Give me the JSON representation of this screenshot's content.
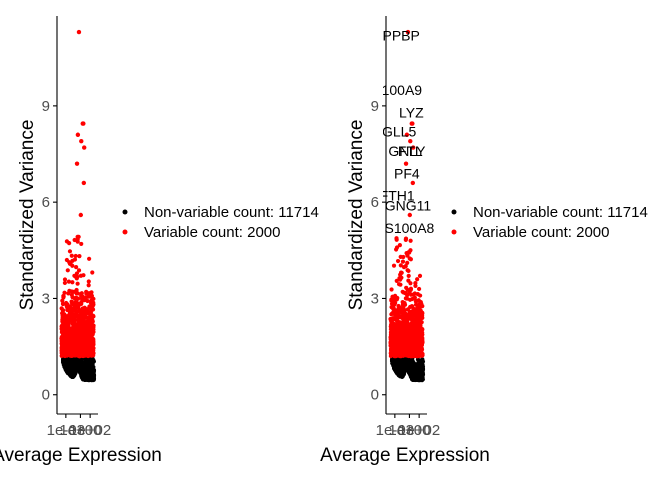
{
  "chart_data": [
    {
      "type": "scatter",
      "xlabel": "Average Expression",
      "ylabel": "Standardized Variance",
      "x_tick_labels": [
        "1e-03",
        "1e+00",
        "1e+02"
      ],
      "x_scale": "log",
      "y_ticks": [
        0,
        3,
        6,
        9
      ],
      "ylim": [
        -0.6,
        11.8
      ],
      "grid": false,
      "legend_position": "right",
      "series": [
        {
          "name": "Non-variable count: 11714",
          "color": "#000000",
          "count": 11714
        },
        {
          "name": "Variable count: 2000",
          "color": "#ff0000",
          "count": 2000
        }
      ],
      "highlighted_points": [
        {
          "x": 0.5,
          "y": 11.3
        },
        {
          "x": 3,
          "y": 8.45
        },
        {
          "x": 4,
          "y": 8.45
        },
        {
          "x": 0.3,
          "y": 8.1
        },
        {
          "x": 1.5,
          "y": 7.9
        },
        {
          "x": 6,
          "y": 7.7
        },
        {
          "x": 0.2,
          "y": 7.2
        },
        {
          "x": 5,
          "y": 6.6
        },
        {
          "x": 1.2,
          "y": 5.6
        }
      ],
      "gene_labels": []
    },
    {
      "type": "scatter",
      "xlabel": "Average Expression",
      "ylabel": "Standardized Variance",
      "x_tick_labels": [
        "1e-03",
        "1e+00",
        "1e+02"
      ],
      "x_scale": "log",
      "y_ticks": [
        0,
        3,
        6,
        9
      ],
      "ylim": [
        -0.6,
        11.8
      ],
      "grid": false,
      "legend_position": "right",
      "series": [
        {
          "name": "Non-variable count: 11714",
          "color": "#000000",
          "count": 11714
        },
        {
          "name": "Variable count: 2000",
          "color": "#ff0000",
          "count": 2000
        }
      ],
      "highlighted_points": [
        {
          "x": 0.5,
          "y": 11.3
        },
        {
          "x": 3,
          "y": 8.45
        },
        {
          "x": 4,
          "y": 8.45
        },
        {
          "x": 0.3,
          "y": 8.1
        },
        {
          "x": 1.5,
          "y": 7.9
        },
        {
          "x": 6,
          "y": 7.7
        },
        {
          "x": 0.2,
          "y": 7.2
        },
        {
          "x": 5,
          "y": 6.6
        },
        {
          "x": 1.2,
          "y": 5.6
        }
      ],
      "gene_labels": [
        {
          "text": "PPBP",
          "x": 0.02,
          "y": 11.2
        },
        {
          "text": "S100A9",
          "x": 0.003,
          "y": 9.5
        },
        {
          "text": "LYZ",
          "x": 2.5,
          "y": 8.8
        },
        {
          "text": "GNLY",
          "x": 0.3,
          "y": 7.6
        },
        {
          "text": "IGLL5",
          "x": 0.003,
          "y": 8.2
        },
        {
          "text": "FTL",
          "x": 1.5,
          "y": 7.6
        },
        {
          "text": "PF4",
          "x": 0.3,
          "y": 6.9
        },
        {
          "text": "FTH1",
          "x": 0.003,
          "y": 6.2
        },
        {
          "text": "GNG11",
          "x": 0.5,
          "y": 5.9
        },
        {
          "text": "S100A8",
          "x": 1.0,
          "y": 5.2
        }
      ]
    }
  ]
}
